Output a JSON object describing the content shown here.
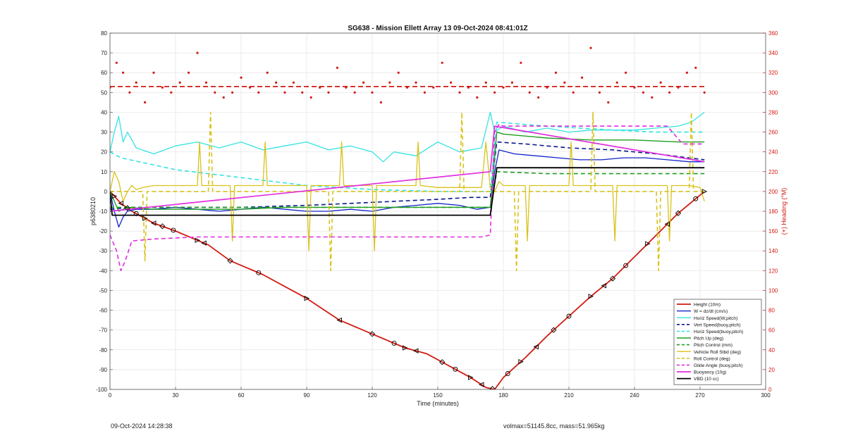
{
  "footer": {
    "left": "09-Oct-2024 14:28:38",
    "right": "volmax=51145.8cc, mass=51.965kg"
  },
  "chart_data": {
    "type": "line",
    "title": "SG638 - Mission Ellett Array 13 09-Oct-2024 08:41:01Z",
    "xlabel": "Time (minutes)",
    "ylabel": "p6380210",
    "y2label": "(+) Heading (°M)",
    "xlim": [
      0,
      300
    ],
    "ylim": [
      -100,
      80
    ],
    "y2lim": [
      0,
      360
    ],
    "xticks": [
      0,
      30,
      60,
      90,
      120,
      150,
      180,
      210,
      240,
      270,
      300
    ],
    "yticks": [
      -100,
      -90,
      -80,
      -70,
      -60,
      -50,
      -40,
      -30,
      -20,
      -10,
      0,
      10,
      20,
      30,
      40,
      50,
      60,
      70,
      80
    ],
    "y2ticks": [
      0,
      20,
      40,
      60,
      80,
      100,
      120,
      140,
      160,
      180,
      200,
      220,
      240,
      260,
      280,
      300,
      320,
      340,
      360
    ],
    "grid": true,
    "legend_position": "bottom-right",
    "series": [
      {
        "name": "Height (10m)",
        "color": "#d11b12",
        "style": "solid",
        "width": 1.8,
        "x": [
          0,
          5,
          10,
          20,
          30,
          45,
          55,
          70,
          90,
          105,
          120,
          135,
          145,
          155,
          165,
          172,
          176,
          180,
          190,
          200,
          210,
          220,
          230,
          240,
          250,
          260,
          272
        ],
        "y": [
          0,
          -6,
          -10,
          -16,
          -20,
          -27,
          -35,
          -42,
          -54,
          -65,
          -72,
          -79,
          -82,
          -88,
          -94,
          -99,
          -100,
          -94,
          -84,
          -73,
          -63,
          -53,
          -44,
          -33,
          -22,
          -11,
          0
        ]
      },
      {
        "name": "W = dz/dt (cm/s)",
        "color": "#1024c8",
        "style": "solid",
        "width": 1.3,
        "x": [
          0,
          2,
          4,
          6,
          8,
          12,
          20,
          30,
          40,
          50,
          60,
          70,
          80,
          90,
          100,
          110,
          120,
          130,
          140,
          150,
          160,
          168,
          174,
          176,
          178,
          185,
          195,
          205,
          215,
          225,
          235,
          245,
          255,
          265,
          272
        ],
        "y": [
          0,
          -10,
          -18,
          -13,
          -10,
          -9,
          -9,
          -8,
          -9,
          -10,
          -9,
          -8,
          -9,
          -10,
          -10,
          -9,
          -10,
          -8,
          -7,
          -6,
          -7,
          -9,
          -8,
          10,
          21,
          19,
          18,
          17,
          16,
          16,
          17,
          17,
          16,
          15,
          15
        ]
      },
      {
        "name": "Horiz Speed(W,pitch)",
        "color": "#35e3e3",
        "style": "solid",
        "width": 1.3,
        "x": [
          0,
          2,
          4,
          6,
          8,
          12,
          20,
          25,
          30,
          40,
          50,
          60,
          70,
          80,
          90,
          100,
          110,
          120,
          125,
          130,
          140,
          150,
          160,
          170,
          174,
          176,
          180,
          190,
          200,
          210,
          220,
          230,
          240,
          250,
          260,
          266,
          272
        ],
        "y": [
          20,
          30,
          38,
          25,
          30,
          22,
          19,
          21,
          23,
          25,
          22,
          25,
          21,
          23,
          25,
          21,
          23,
          20,
          15,
          20,
          18,
          25,
          20,
          22,
          40,
          30,
          33,
          30,
          32,
          30,
          31,
          31,
          31,
          32,
          33,
          35,
          40
        ]
      },
      {
        "name": "Vert Speed(buoy,pitch)",
        "color": "#0a1890",
        "style": "dashed",
        "width": 1.6,
        "x": [
          0,
          10,
          30,
          60,
          90,
          110,
          130,
          150,
          165,
          174,
          177,
          190,
          210,
          230,
          250,
          272
        ],
        "y": [
          -9,
          -8,
          -8,
          -8,
          -7,
          -6,
          -5,
          -4,
          -3,
          -3,
          25,
          24,
          22,
          21,
          19,
          16
        ]
      },
      {
        "name": "Horiz Speed(buoy,pitch)",
        "color": "#35e3e3",
        "style": "dashed",
        "width": 1.6,
        "x": [
          0,
          5,
          30,
          60,
          90,
          120,
          150,
          174,
          177,
          200,
          230,
          250,
          272
        ],
        "y": [
          20,
          17,
          11,
          7,
          3,
          1,
          0,
          0,
          35,
          33,
          31,
          30,
          30
        ]
      },
      {
        "name": "Pitch Up (deg)",
        "color": "#1f9e1f",
        "style": "solid",
        "width": 1.4,
        "x": [
          0,
          2,
          4,
          8,
          20,
          40,
          60,
          80,
          100,
          120,
          140,
          160,
          174,
          177,
          180,
          200,
          220,
          240,
          260,
          272
        ],
        "y": [
          0,
          -5,
          -10,
          -8,
          -9,
          -9,
          -9,
          -8,
          -8,
          -8,
          -8,
          -8,
          -8,
          30,
          29,
          27,
          26,
          26,
          25,
          25
        ]
      },
      {
        "name": "Pitch Control (mm)",
        "color": "#1f9e1f",
        "style": "dashed",
        "width": 1.6,
        "x": [
          0,
          5,
          30,
          60,
          90,
          120,
          150,
          174,
          177,
          200,
          230,
          272
        ],
        "y": [
          -8,
          -8,
          -8,
          -8,
          -8,
          -8,
          -8,
          -8,
          10,
          9,
          9,
          9
        ]
      },
      {
        "name": "Vehicle Roll Stbd (deg)",
        "color": "#d9c21c",
        "style": "solid",
        "width": 1.3,
        "x": [
          0,
          2,
          4,
          6,
          8,
          10,
          12,
          15,
          20,
          30,
          40,
          41,
          42,
          50,
          55,
          56,
          57,
          70,
          71,
          72,
          90,
          91,
          92,
          105,
          106,
          107,
          120,
          121,
          122,
          140,
          141,
          142,
          150,
          170,
          172,
          174,
          176,
          178,
          180,
          190,
          191,
          192,
          200,
          210,
          211,
          212,
          220,
          230,
          231,
          232,
          240,
          255,
          256,
          257,
          265,
          270,
          272
        ],
        "y": [
          0,
          10,
          5,
          -5,
          0,
          3,
          1,
          2,
          3,
          3,
          3,
          25,
          3,
          3,
          3,
          -25,
          3,
          3,
          25,
          3,
          3,
          -30,
          3,
          3,
          25,
          3,
          3,
          -30,
          3,
          3,
          25,
          3,
          2,
          2,
          25,
          2,
          0,
          5,
          3,
          3,
          -25,
          3,
          3,
          3,
          25,
          3,
          3,
          3,
          -25,
          3,
          3,
          3,
          -25,
          3,
          3,
          2,
          -5
        ]
      },
      {
        "name": "Roll Control (deg)",
        "color": "#d9c21c",
        "style": "dashed",
        "width": 1.6,
        "x": [
          0,
          5,
          12,
          15,
          16,
          17,
          30,
          45,
          46,
          47,
          60,
          80,
          100,
          101,
          102,
          120,
          150,
          160,
          161,
          162,
          175,
          177,
          185,
          186,
          187,
          200,
          220,
          221,
          222,
          240,
          250,
          251,
          252,
          265,
          266,
          267,
          272
        ],
        "y": [
          0,
          0,
          0,
          0,
          -35,
          0,
          0,
          0,
          40,
          0,
          0,
          0,
          0,
          -40,
          0,
          0,
          0,
          0,
          40,
          0,
          0,
          0,
          0,
          -40,
          0,
          0,
          0,
          40,
          0,
          0,
          0,
          -40,
          0,
          0,
          40,
          0,
          0
        ]
      },
      {
        "name": "Glide Angle (buoy,pitch)",
        "color": "#e02de0",
        "style": "dashed",
        "width": 1.6,
        "x": [
          0,
          3,
          5,
          7,
          10,
          20,
          40,
          60,
          90,
          120,
          150,
          170,
          174,
          176,
          178,
          180,
          200,
          220,
          240,
          255,
          262,
          265,
          272
        ],
        "y": [
          -22,
          -30,
          -40,
          -35,
          -25,
          -24,
          -23,
          -23,
          -23,
          -23,
          -23,
          -23,
          -22,
          30,
          34,
          33,
          33,
          33,
          33,
          33,
          24,
          24,
          24
        ]
      },
      {
        "name": "Buoyancy (10g)",
        "color": "#e02de0",
        "style": "solid",
        "width": 1.7,
        "x": [
          0,
          174,
          176,
          272
        ],
        "y": [
          -10,
          10,
          33,
          15
        ]
      },
      {
        "name": "VBD (10 cc)",
        "color": "#000000",
        "style": "solid",
        "width": 1.8,
        "x": [
          0,
          1,
          174,
          177,
          272
        ],
        "y": [
          0,
          -12,
          -12,
          12,
          12
        ]
      }
    ],
    "heading_series": {
      "name": "(+) Heading (°M)",
      "axis": "right",
      "color": "#d11b12",
      "mean": 306,
      "x": [
        0,
        3,
        6,
        9,
        12,
        16,
        20,
        24,
        28,
        32,
        36,
        40,
        44,
        48,
        52,
        56,
        60,
        64,
        68,
        72,
        76,
        80,
        84,
        88,
        92,
        96,
        100,
        104,
        108,
        112,
        116,
        120,
        124,
        128,
        132,
        136,
        140,
        144,
        148,
        152,
        156,
        160,
        164,
        168,
        172,
        176,
        180,
        184,
        188,
        192,
        196,
        200,
        204,
        208,
        212,
        216,
        220,
        224,
        228,
        232,
        236,
        240,
        244,
        248,
        252,
        256,
        260,
        264,
        268,
        272
      ],
      "y": [
        305,
        330,
        320,
        300,
        310,
        290,
        320,
        305,
        300,
        310,
        320,
        340,
        310,
        300,
        295,
        300,
        315,
        305,
        300,
        320,
        310,
        300,
        310,
        300,
        295,
        305,
        300,
        325,
        305,
        300,
        310,
        300,
        290,
        310,
        320,
        305,
        310,
        300,
        305,
        330,
        310,
        300,
        305,
        295,
        310,
        300,
        305,
        310,
        330,
        300,
        295,
        305,
        320,
        310,
        300,
        315,
        345,
        300,
        290,
        310,
        320,
        305,
        300,
        295,
        310,
        300,
        305,
        320,
        325,
        300
      ]
    },
    "markers": {
      "on_series": "Height (10m)",
      "types": [
        "triangle-right",
        "triangle-left",
        "diamond",
        "circle"
      ],
      "x": [
        2,
        5,
        8,
        12,
        16,
        20,
        24,
        29,
        40,
        43,
        55,
        68,
        90,
        105,
        120,
        130,
        135,
        140,
        152,
        158,
        165,
        170,
        175,
        182,
        188,
        195,
        203,
        210,
        220,
        226,
        230,
        236,
        246,
        255,
        260,
        268,
        272
      ]
    }
  }
}
